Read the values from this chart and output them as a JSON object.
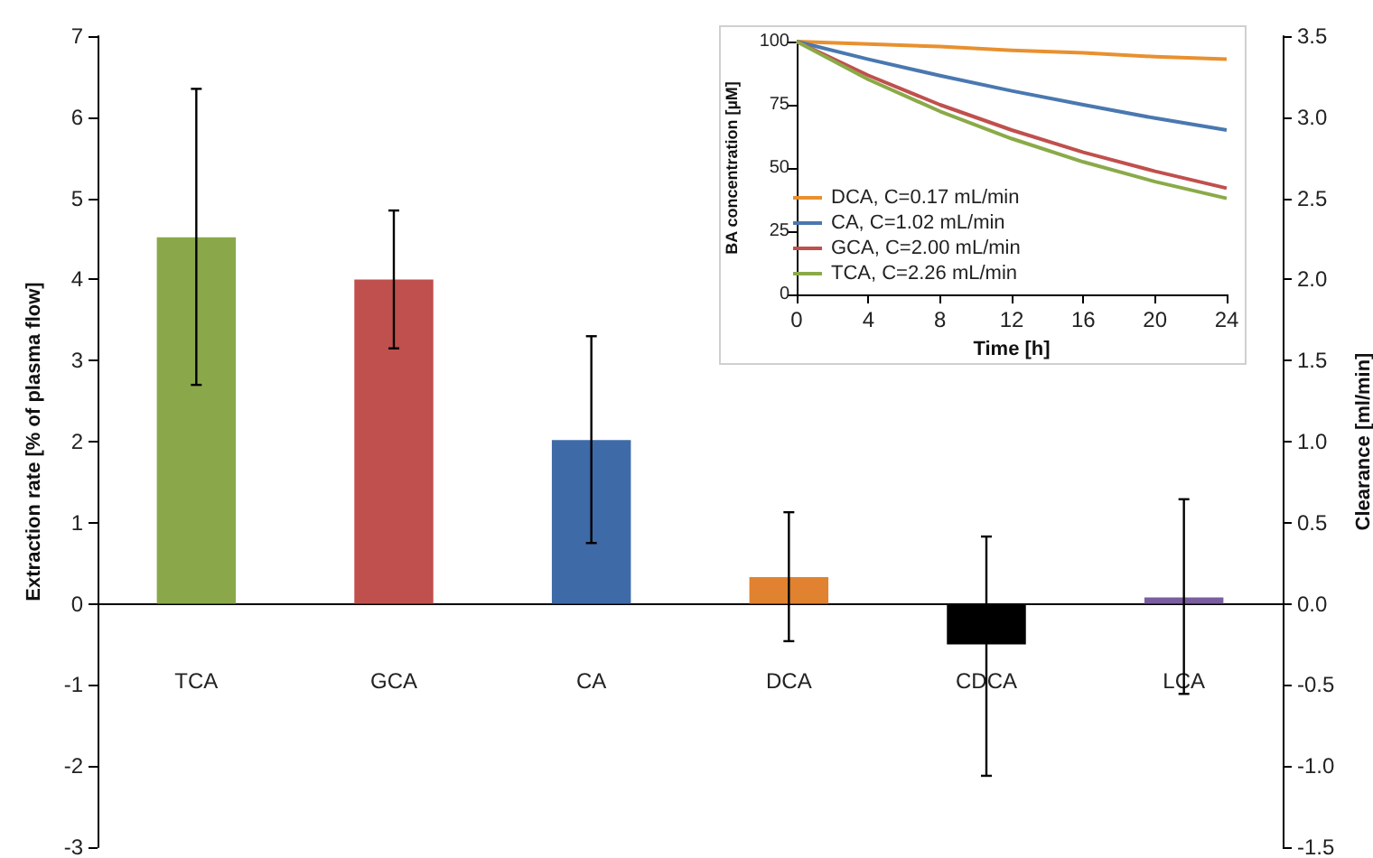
{
  "chart_data": [
    {
      "type": "bar",
      "categories": [
        "TCA",
        "GCA",
        "CA",
        "DCA",
        "CDCA",
        "LCA"
      ],
      "values": [
        4.52,
        4.0,
        2.02,
        0.33,
        -0.5,
        0.08
      ],
      "colors": [
        "#8aa84a",
        "#c0504d",
        "#3e6aa8",
        "#e0822f",
        "#000000",
        "#7a5ea0"
      ],
      "errors": [
        [
          2.7,
          6.35
        ],
        [
          3.15,
          4.85
        ],
        [
          0.75,
          3.3
        ],
        [
          -0.46,
          1.13
        ],
        [
          -2.12,
          0.83
        ],
        [
          -1.11,
          1.29
        ]
      ],
      "ylabel": "Extraction rate [% of plasma flow]",
      "y2label": "Clearance [ml/min]",
      "ylim": [
        -3,
        7
      ],
      "yticks": [
        -3,
        -2,
        -1,
        0,
        1,
        2,
        3,
        4,
        5,
        6,
        7
      ],
      "y2lim": [
        -1.5,
        3.5
      ],
      "y2ticks": [
        -1.5,
        {
          "value": -1,
          "label": "-1.0"
        },
        -0.5,
        {
          "value": 0,
          "label": "0.0"
        },
        0.5,
        {
          "value": 1,
          "label": "1.0"
        },
        1.5,
        {
          "value": 2,
          "label": "2.0"
        },
        2.5,
        {
          "value": 3,
          "label": "3.0"
        },
        3.5
      ],
      "legend": false
    },
    {
      "type": "line",
      "x": [
        0,
        4,
        8,
        12,
        16,
        20,
        24
      ],
      "series": [
        {
          "name": "DCA, C=0.17 mL/min",
          "color": "#e8902f",
          "values": [
            100,
            99,
            98,
            96.5,
            95.5,
            94,
            93
          ]
        },
        {
          "name": "CA, C=1.02 mL/min",
          "color": "#4a78b0",
          "values": [
            100,
            93,
            86.5,
            80.5,
            75,
            69.7,
            65
          ]
        },
        {
          "name": "GCA, C=2.00 mL/min",
          "color": "#c0504d",
          "values": [
            100,
            86.6,
            75,
            65,
            56.2,
            48.7,
            42
          ]
        },
        {
          "name": "TCA, C=2.26 mL/min",
          "color": "#8aaa48",
          "values": [
            100,
            85,
            72.4,
            61.6,
            52.4,
            44.6,
            38
          ]
        }
      ],
      "xlabel": "Time [h]",
      "ylabel": "BA concentration [µM]",
      "xlim": [
        0,
        24
      ],
      "xticks": [
        0,
        4,
        8,
        12,
        16,
        20,
        24
      ],
      "ylim": [
        0,
        100
      ],
      "yticks": [
        0,
        25,
        50,
        75,
        100
      ],
      "grid": false,
      "legend": "bottom left",
      "marker": "none",
      "line_style": "solid"
    }
  ]
}
